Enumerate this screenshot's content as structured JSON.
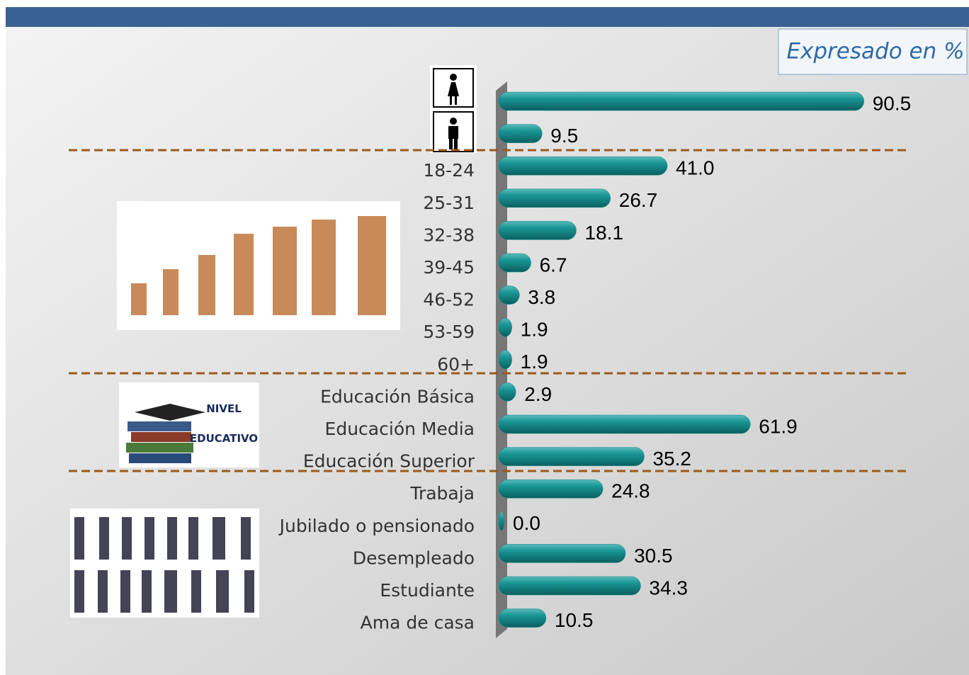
{
  "chart_data": {
    "type": "bar",
    "orientation": "horizontal",
    "annotation": "Expresado en %",
    "categories": [
      null,
      null,
      "18-24",
      "25-31",
      "32-38",
      "39-45",
      "46-52",
      "53-59",
      "60+",
      "Educación Básica",
      "Educación Media",
      "Educación Superior",
      "Trabaja",
      "Jubilado o pensionado",
      "Desempleado",
      "Estudiante",
      "Ama de casa"
    ],
    "values": [
      90.5,
      9.5,
      41.0,
      26.7,
      18.1,
      6.7,
      3.8,
      1.9,
      1.9,
      2.9,
      61.9,
      35.2,
      24.8,
      0.0,
      30.5,
      34.3,
      10.5
    ],
    "value_labels": [
      "90.5",
      "9.5",
      "41.0",
      "26.7",
      "18.1",
      "6.7",
      "3.8",
      "1.9",
      "1.9",
      "2.9",
      "61.9",
      "35.2",
      "24.8",
      "0.0",
      "30.5",
      "34.3",
      "10.5"
    ],
    "color": "#138a8a",
    "xlim": [
      0,
      100
    ]
  }
}
